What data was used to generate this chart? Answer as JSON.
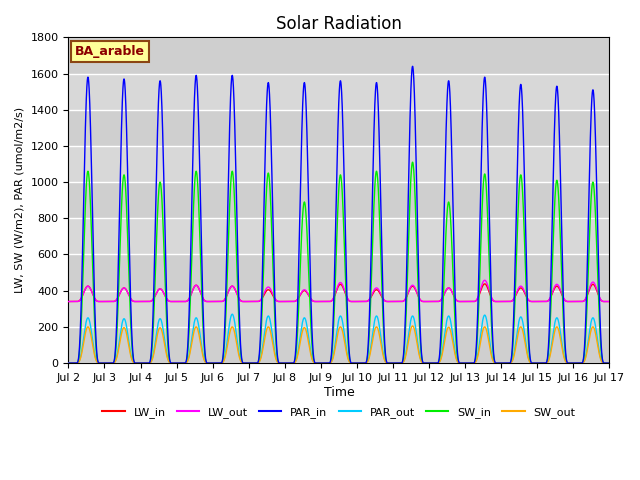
{
  "title": "Solar Radiation",
  "xlabel": "Time",
  "ylabel": "LW, SW (W/m2), PAR (umol/m2/s)",
  "ylim": [
    0,
    1800
  ],
  "annotation_text": "BA_arable",
  "background_color": "#e8e8e8",
  "plot_bg_color": "#d8d8d8",
  "grid_color": "#ffffff",
  "legend": [
    {
      "label": "LW_in",
      "color": "#ff0000"
    },
    {
      "label": "LW_out",
      "color": "#ff00ff"
    },
    {
      "label": "PAR_in",
      "color": "#0000ff"
    },
    {
      "label": "PAR_out",
      "color": "#00ccff"
    },
    {
      "label": "SW_in",
      "color": "#00ee00"
    },
    {
      "label": "SW_out",
      "color": "#ffaa00"
    }
  ],
  "n_days": 15,
  "hours_per_day": 24,
  "dt_hours": 0.1,
  "start_day": 2,
  "end_day": 17,
  "lw_in_night": 340,
  "lw_out_night": 340,
  "par_peaks": [
    1580,
    1570,
    1560,
    1590,
    1590,
    1550,
    1550,
    1560,
    1550,
    1640,
    1560,
    1580,
    1540,
    1530,
    1510
  ],
  "sw_peaks": [
    1060,
    1040,
    1000,
    1060,
    1060,
    1050,
    890,
    1040,
    1060,
    1110,
    890,
    1045,
    1040,
    1010,
    1000
  ],
  "par_out_peaks": [
    250,
    245,
    245,
    250,
    270,
    260,
    250,
    260,
    260,
    260,
    260,
    265,
    255,
    250,
    250
  ],
  "sw_out_peaks": [
    200,
    196,
    195,
    200,
    200,
    200,
    196,
    200,
    200,
    205,
    198,
    200,
    200,
    200,
    200
  ],
  "lw_in_peaks": [
    510,
    490,
    480,
    520,
    510,
    470,
    460,
    530,
    470,
    510,
    490,
    535,
    490,
    510,
    530
  ],
  "lw_out_peaks": [
    510,
    490,
    480,
    520,
    510,
    500,
    470,
    550,
    490,
    520,
    490,
    575,
    510,
    530,
    555
  ]
}
